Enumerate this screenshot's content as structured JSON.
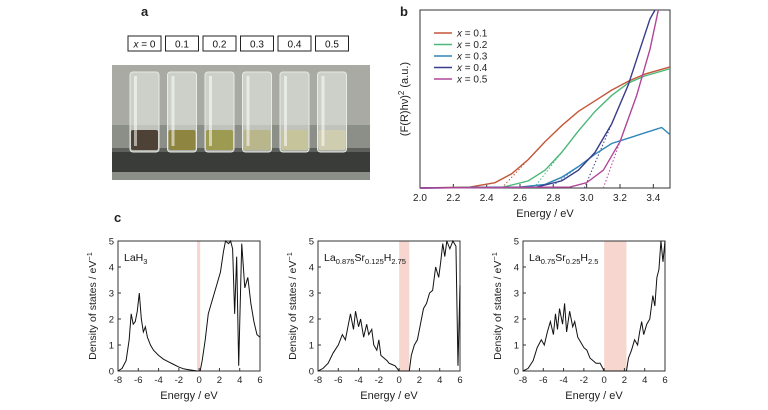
{
  "panel_labels": {
    "a": "a",
    "b": "b",
    "c": "c"
  },
  "photo": {
    "samples": [
      {
        "label": "x = 0",
        "var": "x",
        "rest": " = 0",
        "color": "#4e4236"
      },
      {
        "label": "0.1",
        "color": "#8e8640"
      },
      {
        "label": "0.2",
        "color": "#9d9a52"
      },
      {
        "label": "0.3",
        "color": "#b9b68c"
      },
      {
        "label": "0.4",
        "color": "#c6c49b"
      },
      {
        "label": "0.5",
        "color": "#cfcdb0"
      }
    ]
  },
  "chart_data": [
    {
      "type": "line",
      "panel": "b",
      "xlabel": "Energy / eV",
      "ylabel": "(F(R)hν)2 (a.u.)",
      "ylabel_parts": {
        "base": "(F(R)hν)",
        "sup": "2",
        "tail": " (a.u.)"
      },
      "xlim": [
        2.0,
        3.5
      ],
      "ylim": [
        0,
        1.0
      ],
      "x_ticks": [
        "2.0",
        "2.2",
        "2.4",
        "2.6",
        "2.8",
        "3.0",
        "3.2",
        "3.4"
      ],
      "legend_position": "top-left",
      "series": [
        {
          "name": "x = 0.1",
          "var": "x",
          "rest": " = 0.1",
          "color": "#c4573a",
          "points": [
            [
              2.0,
              0.0
            ],
            [
              2.3,
              0.005
            ],
            [
              2.45,
              0.03
            ],
            [
              2.55,
              0.08
            ],
            [
              2.65,
              0.16
            ],
            [
              2.75,
              0.26
            ],
            [
              2.85,
              0.35
            ],
            [
              2.95,
              0.43
            ],
            [
              3.05,
              0.49
            ],
            [
              3.15,
              0.55
            ],
            [
              3.25,
              0.6
            ],
            [
              3.35,
              0.64
            ],
            [
              3.5,
              0.68
            ]
          ]
        },
        {
          "name": "x = 0.2",
          "var": "x",
          "rest": " = 0.2",
          "color": "#4cb87a",
          "points": [
            [
              2.0,
              0.0
            ],
            [
              2.5,
              0.005
            ],
            [
              2.65,
              0.04
            ],
            [
              2.75,
              0.1
            ],
            [
              2.85,
              0.2
            ],
            [
              2.95,
              0.32
            ],
            [
              3.05,
              0.43
            ],
            [
              3.15,
              0.52
            ],
            [
              3.25,
              0.59
            ],
            [
              3.35,
              0.63
            ],
            [
              3.5,
              0.67
            ]
          ]
        },
        {
          "name": "x = 0.3",
          "var": "x",
          "rest": " = 0.3",
          "color": "#2f86b8",
          "points": [
            [
              2.0,
              0.0
            ],
            [
              2.6,
              0.005
            ],
            [
              2.75,
              0.02
            ],
            [
              2.85,
              0.06
            ],
            [
              2.95,
              0.12
            ],
            [
              3.05,
              0.19
            ],
            [
              3.15,
              0.25
            ],
            [
              3.25,
              0.28
            ],
            [
              3.35,
              0.31
            ],
            [
              3.45,
              0.34
            ],
            [
              3.5,
              0.3
            ]
          ]
        },
        {
          "name": "x = 0.4",
          "var": "x",
          "rest": " = 0.4",
          "color": "#3a3d8c",
          "points": [
            [
              2.0,
              0.0
            ],
            [
              2.7,
              0.005
            ],
            [
              2.85,
              0.04
            ],
            [
              2.95,
              0.1
            ],
            [
              3.05,
              0.2
            ],
            [
              3.15,
              0.36
            ],
            [
              3.25,
              0.58
            ],
            [
              3.32,
              0.78
            ],
            [
              3.38,
              0.95
            ],
            [
              3.41,
              1.0
            ]
          ]
        },
        {
          "name": "x = 0.5",
          "var": "x",
          "rest": " = 0.5",
          "color": "#b0469a",
          "points": [
            [
              2.0,
              0.0
            ],
            [
              2.9,
              0.005
            ],
            [
              3.0,
              0.03
            ],
            [
              3.1,
              0.1
            ],
            [
              3.2,
              0.26
            ],
            [
              3.3,
              0.52
            ],
            [
              3.38,
              0.78
            ],
            [
              3.43,
              1.0
            ]
          ]
        }
      ]
    },
    {
      "type": "line",
      "panel": "c1",
      "title": "LaH3",
      "title_parts": {
        "base": "LaH",
        "subs": [
          [
            "3"
          ]
        ]
      },
      "xlabel": "Energy / eV",
      "ylabel": "Density of states / eV-1",
      "xlim": [
        -8,
        6
      ],
      "ylim": [
        0,
        5
      ],
      "x_ticks": [
        "-8",
        "-6",
        "-4",
        "-2",
        "0",
        "2",
        "4",
        "6"
      ],
      "y_ticks": [
        "0",
        "1",
        "2",
        "3",
        "4",
        "5"
      ],
      "gap_band": [
        -0.2,
        0.1
      ],
      "points": [
        [
          -8,
          0
        ],
        [
          -7.6,
          0.1
        ],
        [
          -7.2,
          0.4
        ],
        [
          -6.9,
          1.2
        ],
        [
          -6.7,
          2.2
        ],
        [
          -6.5,
          1.8
        ],
        [
          -6.3,
          1.9
        ],
        [
          -6.1,
          2.3
        ],
        [
          -5.9,
          3.0
        ],
        [
          -5.7,
          2.0
        ],
        [
          -5.5,
          1.5
        ],
        [
          -5.3,
          1.7
        ],
        [
          -5.1,
          1.3
        ],
        [
          -4.8,
          1.0
        ],
        [
          -4.5,
          0.8
        ],
        [
          -4.0,
          0.6
        ],
        [
          -3.5,
          0.45
        ],
        [
          -3.0,
          0.35
        ],
        [
          -2.5,
          0.25
        ],
        [
          -2.0,
          0.15
        ],
        [
          -1.5,
          0.08
        ],
        [
          -1.0,
          0.05
        ],
        [
          -0.5,
          0.02
        ],
        [
          -0.2,
          0.0
        ],
        [
          0.1,
          0.0
        ],
        [
          0.3,
          0.4
        ],
        [
          0.6,
          1.2
        ],
        [
          0.9,
          2.2
        ],
        [
          1.2,
          2.6
        ],
        [
          1.5,
          3.0
        ],
        [
          1.8,
          3.4
        ],
        [
          2.1,
          3.8
        ],
        [
          2.4,
          4.6
        ],
        [
          2.6,
          5.0
        ],
        [
          2.9,
          4.9
        ],
        [
          3.1,
          5.0
        ],
        [
          3.3,
          4.7
        ],
        [
          3.5,
          2.2
        ],
        [
          3.7,
          4.4
        ],
        [
          3.9,
          0.2
        ],
        [
          4.0,
          1.8
        ],
        [
          4.2,
          4.9
        ],
        [
          4.5,
          3.2
        ],
        [
          4.8,
          3.6
        ],
        [
          5.1,
          2.6
        ],
        [
          5.4,
          1.9
        ],
        [
          5.7,
          1.4
        ],
        [
          6.0,
          1.3
        ]
      ]
    },
    {
      "type": "line",
      "panel": "c2",
      "title": "La0.875Sr0.125H2.75",
      "title_parts": {
        "base": "La",
        "subs": [
          [
            "0.875"
          ],
          [
            "Sr"
          ],
          [
            "0.125"
          ],
          [
            "H"
          ],
          [
            "2.75"
          ]
        ]
      },
      "xlabel": "Energy / eV",
      "ylabel": "Density of states / eV-1",
      "xlim": [
        -8,
        6
      ],
      "ylim": [
        0,
        5
      ],
      "x_ticks": [
        "-8",
        "-6",
        "-4",
        "-2",
        "0",
        "2",
        "4",
        "6"
      ],
      "y_ticks": [
        "0",
        "1",
        "2",
        "3",
        "4",
        "5"
      ],
      "gap_band": [
        0.0,
        1.0
      ],
      "points": [
        [
          -8,
          0
        ],
        [
          -7.5,
          0.1
        ],
        [
          -7.0,
          0.3
        ],
        [
          -6.5,
          0.7
        ],
        [
          -6.0,
          1.0
        ],
        [
          -5.6,
          1.4
        ],
        [
          -5.3,
          1.2
        ],
        [
          -5.0,
          1.8
        ],
        [
          -4.8,
          2.2
        ],
        [
          -4.5,
          1.6
        ],
        [
          -4.3,
          2.3
        ],
        [
          -4.0,
          1.7
        ],
        [
          -3.8,
          2.0
        ],
        [
          -3.5,
          1.3
        ],
        [
          -3.2,
          1.8
        ],
        [
          -3.0,
          1.4
        ],
        [
          -2.7,
          1.6
        ],
        [
          -2.5,
          1.0
        ],
        [
          -2.2,
          0.8
        ],
        [
          -2.0,
          1.2
        ],
        [
          -1.8,
          0.6
        ],
        [
          -1.5,
          0.5
        ],
        [
          -1.2,
          0.4
        ],
        [
          -1.0,
          0.3
        ],
        [
          -0.7,
          0.25
        ],
        [
          -0.4,
          0.2
        ],
        [
          0.0,
          0.0
        ],
        [
          1.0,
          0.0
        ],
        [
          1.2,
          0.6
        ],
        [
          1.5,
          1.0
        ],
        [
          1.8,
          1.2
        ],
        [
          2.1,
          1.8
        ],
        [
          2.4,
          2.4
        ],
        [
          2.7,
          2.6
        ],
        [
          3.0,
          3.0
        ],
        [
          3.3,
          3.1
        ],
        [
          3.6,
          4.0
        ],
        [
          3.9,
          3.6
        ],
        [
          4.1,
          4.2
        ],
        [
          4.3,
          4.9
        ],
        [
          4.5,
          4.4
        ],
        [
          4.7,
          5.0
        ],
        [
          5.0,
          4.7
        ],
        [
          5.3,
          5.0
        ],
        [
          5.6,
          4.8
        ],
        [
          5.8,
          0.2
        ],
        [
          6.0,
          3.3
        ]
      ]
    },
    {
      "type": "line",
      "panel": "c3",
      "title": "La0.75Sr0.25H2.5",
      "title_parts": {
        "base": "La",
        "subs": [
          [
            "0.75"
          ],
          [
            "Sr"
          ],
          [
            "0.25"
          ],
          [
            "H"
          ],
          [
            "2.5"
          ]
        ]
      },
      "xlabel": "Energy / eV",
      "ylabel": "Density of states / eV-1",
      "xlim": [
        -8,
        6
      ],
      "ylim": [
        0,
        5
      ],
      "x_ticks": [
        "-8",
        "-6",
        "-4",
        "-2",
        "0",
        "2",
        "4",
        "6"
      ],
      "y_ticks": [
        "0",
        "1",
        "2",
        "3",
        "4",
        "5"
      ],
      "gap_band": [
        0.0,
        2.2
      ],
      "points": [
        [
          -8,
          0
        ],
        [
          -7.5,
          0.1
        ],
        [
          -7.0,
          0.4
        ],
        [
          -6.6,
          0.9
        ],
        [
          -6.2,
          1.2
        ],
        [
          -5.9,
          1.0
        ],
        [
          -5.6,
          1.5
        ],
        [
          -5.3,
          1.9
        ],
        [
          -5.0,
          1.4
        ],
        [
          -4.8,
          2.2
        ],
        [
          -4.6,
          1.6
        ],
        [
          -4.4,
          2.4
        ],
        [
          -4.1,
          1.8
        ],
        [
          -3.9,
          2.6
        ],
        [
          -3.7,
          1.5
        ],
        [
          -3.4,
          2.3
        ],
        [
          -3.1,
          1.7
        ],
        [
          -2.9,
          1.9
        ],
        [
          -2.6,
          1.3
        ],
        [
          -2.3,
          1.1
        ],
        [
          -2.0,
          0.9
        ],
        [
          -1.7,
          0.8
        ],
        [
          -1.4,
          0.5
        ],
        [
          -1.1,
          0.4
        ],
        [
          -0.8,
          0.3
        ],
        [
          -0.4,
          0.3
        ],
        [
          0.0,
          0.0
        ],
        [
          2.2,
          0.0
        ],
        [
          2.4,
          0.5
        ],
        [
          2.7,
          0.8
        ],
        [
          3.0,
          1.2
        ],
        [
          3.3,
          1.0
        ],
        [
          3.5,
          1.5
        ],
        [
          3.7,
          1.9
        ],
        [
          3.9,
          1.4
        ],
        [
          4.2,
          1.8
        ],
        [
          4.5,
          2.0
        ],
        [
          4.8,
          2.9
        ],
        [
          5.0,
          2.5
        ],
        [
          5.2,
          3.6
        ],
        [
          5.4,
          3.9
        ],
        [
          5.6,
          5.0
        ],
        [
          5.8,
          4.2
        ],
        [
          6.0,
          5.0
        ]
      ]
    }
  ]
}
